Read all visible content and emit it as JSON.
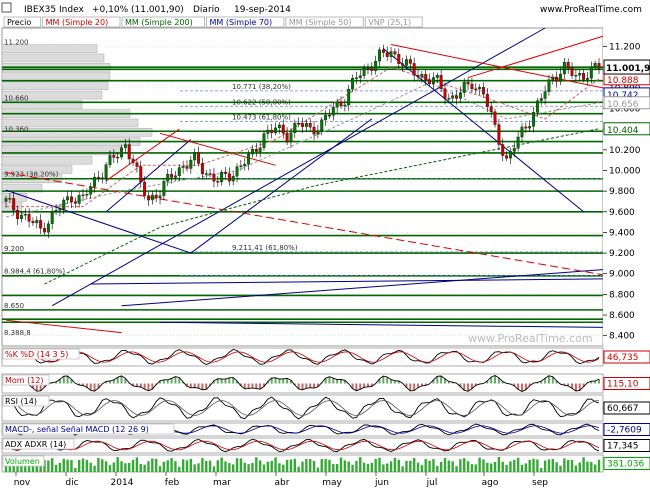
{
  "header": {
    "symbol": "IBEX35 Index",
    "change": "+0,10% (11.001,90)",
    "period": "Diario",
    "date": "19-sep-2014",
    "site": "www.ProRealTime.com"
  },
  "legend": [
    {
      "label": "Precio",
      "color": "#000000"
    },
    {
      "label": "MM (Simple 20)",
      "color": "#cc0000"
    },
    {
      "label": "MM (Simple 200)",
      "color": "#006600"
    },
    {
      "label": "MM (Simple 70)",
      "color": "#000099"
    },
    {
      "label": "MM (Simple 50)",
      "color": "#999999"
    },
    {
      "label": "VNP (25,1)",
      "color": "#999999"
    }
  ],
  "watermark": "www.ProRealTime.com",
  "colors": {
    "up": "#007700",
    "down": "#cc0000",
    "blue": "#000080",
    "red": "#dd0000",
    "green_line": "#006600",
    "grid": "#cccccc",
    "panel_fill": "#c8e8c8"
  },
  "chart_data": {
    "type": "candlestick",
    "x_months": [
      "nov",
      "dic",
      "2014",
      "feb",
      "mar",
      "abr",
      "may",
      "jun",
      "jul",
      "ago",
      "sep"
    ],
    "y_ticks": [
      "11.200",
      "11.000",
      "10.800",
      "10.600",
      "10.400",
      "10.200",
      "10.000",
      "9.800",
      "9.600",
      "9.400",
      "9.200",
      "9.000",
      "8.800",
      "8.600",
      "8.400"
    ],
    "ylim": [
      8300,
      11380
    ],
    "last_price": {
      "label": "11.001,90",
      "value": 11001.9
    },
    "price_tags": [
      {
        "label": "10.888",
        "value": 10888,
        "color": "#cc0000"
      },
      {
        "label": "10.742",
        "value": 10742,
        "color": "#000099"
      },
      {
        "label": "10.656",
        "value": 10656,
        "color": "#999999"
      },
      {
        "label": "10.404",
        "value": 10404,
        "color": "#006600"
      }
    ],
    "close_points": [
      [
        0,
        9700
      ],
      [
        3,
        9600
      ],
      [
        6,
        9520
      ],
      [
        9,
        9430
      ],
      [
        12,
        9560
      ],
      [
        15,
        9680
      ],
      [
        17,
        9750
      ],
      [
        20,
        9720
      ],
      [
        23,
        9900
      ],
      [
        26,
        10050
      ],
      [
        29,
        10150
      ],
      [
        31,
        10250
      ],
      [
        33,
        10100
      ],
      [
        35,
        9850
      ],
      [
        37,
        9720
      ],
      [
        40,
        9800
      ],
      [
        43,
        9950
      ],
      [
        46,
        10050
      ],
      [
        49,
        10100
      ],
      [
        52,
        9980
      ],
      [
        55,
        9900
      ],
      [
        58,
        9950
      ],
      [
        61,
        10050
      ],
      [
        64,
        10150
      ],
      [
        67,
        10350
      ],
      [
        70,
        10400
      ],
      [
        73,
        10350
      ],
      [
        76,
        10450
      ],
      [
        79,
        10400
      ],
      [
        82,
        10450
      ],
      [
        85,
        10600
      ],
      [
        88,
        10700
      ],
      [
        91,
        10900
      ],
      [
        94,
        11000
      ],
      [
        97,
        11100
      ],
      [
        100,
        11150
      ],
      [
        103,
        11050
      ],
      [
        106,
        10950
      ],
      [
        109,
        10900
      ],
      [
        112,
        10850
      ],
      [
        115,
        10700
      ],
      [
        118,
        10750
      ],
      [
        121,
        10850
      ],
      [
        124,
        10750
      ],
      [
        127,
        10400
      ],
      [
        130,
        10100
      ],
      [
        133,
        10300
      ],
      [
        136,
        10500
      ],
      [
        139,
        10700
      ],
      [
        142,
        10900
      ],
      [
        145,
        11000
      ],
      [
        148,
        10900
      ],
      [
        151,
        10950
      ],
      [
        154,
        11001.9
      ]
    ],
    "sma20_points": [
      [
        0,
        9650
      ],
      [
        20,
        9650
      ],
      [
        35,
        10050
      ],
      [
        50,
        10050
      ],
      [
        70,
        10300
      ],
      [
        100,
        11000
      ],
      [
        125,
        10700
      ],
      [
        140,
        10500
      ],
      [
        154,
        10888
      ]
    ],
    "sma200_points": [
      [
        10,
        8900
      ],
      [
        40,
        9450
      ],
      [
        80,
        9850
      ],
      [
        120,
        10150
      ],
      [
        154,
        10404
      ]
    ],
    "sma50_points": [
      [
        0,
        9550
      ],
      [
        30,
        9800
      ],
      [
        60,
        10000
      ],
      [
        90,
        10500
      ],
      [
        110,
        10850
      ],
      [
        130,
        10500
      ],
      [
        154,
        10656
      ]
    ],
    "fib_labels": [
      {
        "label": "10.771 (38,20%)",
        "value": 10771
      },
      {
        "label": "10.622 (50,00%)",
        "value": 10622
      },
      {
        "label": "10.473 (61,80%)",
        "value": 10473
      },
      {
        "label": "9.923 (38,20%)",
        "value": 9923
      },
      {
        "label": "9.211,41 (61,80%)",
        "value": 9211.41
      },
      {
        "label": "8.984,4 (61,80%)",
        "value": 8984.4
      }
    ],
    "left_levels": [
      {
        "label": "11.200",
        "value": 11200
      },
      {
        "label": "10.660",
        "value": 10660
      },
      {
        "label": "10.360",
        "value": 10360
      },
      {
        "label": "9.200",
        "value": 9200
      },
      {
        "label": "8.650",
        "value": 8650
      },
      {
        "label": "8.388,8",
        "value": 8388.8
      }
    ],
    "green_levels": [
      11000,
      10980,
      10870,
      10660,
      10550,
      10380,
      10280,
      10170,
      9920,
      9800,
      9600,
      9370,
      9200,
      8980,
      8790,
      8650,
      8560,
      8530
    ]
  },
  "indicators": [
    {
      "name": "%K %D (14 3 5)",
      "value": "46,735",
      "color": "#cc0000"
    },
    {
      "name": "Mom (12)",
      "value": "115,10",
      "color": "#cc0000"
    },
    {
      "name": "RSI (14)",
      "value": "60,667",
      "color": "#000000"
    },
    {
      "name": "MACD-, señal Señal MACD (12 26 9)",
      "value": "-2,7609",
      "color": "#000099"
    },
    {
      "name": "ADX ADXR (14)",
      "value": "17,345",
      "color": "#000000"
    },
    {
      "name": "Volumen",
      "value": "381.036",
      "color": "#00aa00"
    }
  ]
}
